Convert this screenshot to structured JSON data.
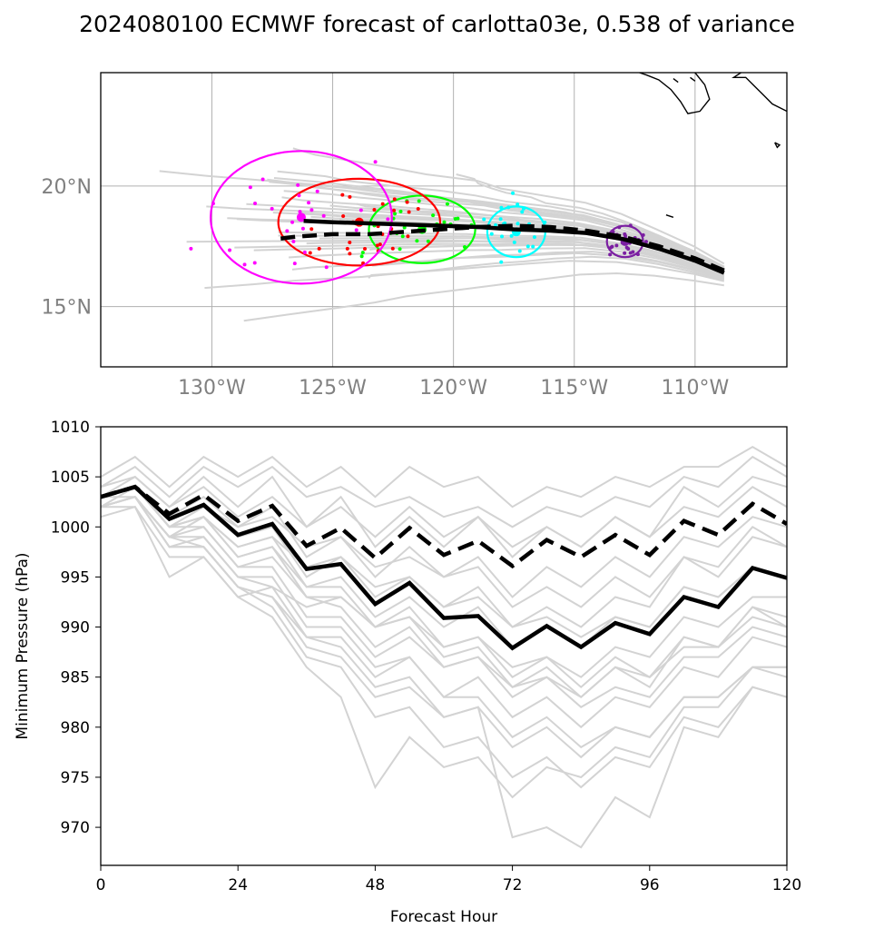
{
  "title": "2024080100 ECMWF forecast of carlotta03e, 0.538 of variance",
  "colors": {
    "ensemble": "#d3d3d3",
    "mean": "#000000",
    "grid": "#b0b0b0",
    "map_tick_label": "#808080",
    "ellipses": [
      "#7b1fa2",
      "#00ffff",
      "#00ff00",
      "#ff0000",
      "#ff00ff"
    ]
  },
  "chart_data": [
    {
      "type": "scatter",
      "name": "track_map",
      "title": "",
      "x_ticks": [
        "130°W",
        "125°W",
        "120°W",
        "115°W",
        "110°W"
      ],
      "x_tick_values": [
        -130,
        -125,
        -120,
        -115,
        -110
      ],
      "y_ticks": [
        "20°N",
        "15°N"
      ],
      "y_tick_values": [
        20,
        15
      ],
      "xlim": [
        -134.6,
        -106.2
      ],
      "ylim": [
        12.5,
        24.7
      ],
      "grid": true,
      "mean_track": {
        "lon": [
          -108.8,
          -110.0,
          -111.5,
          -113.0,
          -114.5,
          -116.0,
          -117.5,
          -119.0,
          -120.5,
          -122.0,
          -123.5,
          -125.0,
          -126.2
        ],
        "lat": [
          16.4,
          16.9,
          17.4,
          17.8,
          18.05,
          18.15,
          18.2,
          18.3,
          18.35,
          18.4,
          18.45,
          18.5,
          18.55
        ]
      },
      "dashed_track": {
        "lon": [
          -108.8,
          -110.0,
          -111.5,
          -113.0,
          -114.5,
          -116.0,
          -117.5,
          -119.0,
          -120.5,
          -122.0,
          -123.5,
          -125.0,
          -126.5,
          -127.3
        ],
        "lat": [
          16.5,
          17.0,
          17.5,
          17.9,
          18.15,
          18.3,
          18.35,
          18.3,
          18.2,
          18.1,
          18.0,
          18.0,
          17.9,
          17.8
        ]
      },
      "ellipses": [
        {
          "center": [
            -112.9,
            17.7
          ],
          "width_deg": 1.5,
          "height_deg": 1.3
        },
        {
          "center": [
            -117.4,
            18.1
          ],
          "width_deg": 2.4,
          "height_deg": 2.1
        },
        {
          "center": [
            -121.3,
            18.2
          ],
          "width_deg": 4.4,
          "height_deg": 2.8
        },
        {
          "center": [
            -123.9,
            18.5
          ],
          "width_deg": 6.7,
          "height_deg": 3.6
        },
        {
          "center": [
            -126.3,
            18.7
          ],
          "width_deg": 7.5,
          "height_deg": 5.5
        }
      ],
      "coastline": [
        [
          [
            -108.1,
            24.7
          ],
          [
            -108.4,
            24.5
          ],
          [
            -107.9,
            24.5
          ],
          [
            -107.6,
            24.2
          ],
          [
            -107.2,
            23.8
          ],
          [
            -106.8,
            23.4
          ],
          [
            -106.2,
            23.1
          ]
        ],
        [
          [
            -110.0,
            24.7
          ],
          [
            -109.6,
            24.2
          ],
          [
            -109.4,
            23.6
          ],
          [
            -109.8,
            23.1
          ],
          [
            -110.3,
            23.0
          ],
          [
            -110.6,
            23.5
          ],
          [
            -111.0,
            24.0
          ],
          [
            -111.5,
            24.4
          ],
          [
            -112.0,
            24.6
          ],
          [
            -112.3,
            24.7
          ]
        ],
        [
          [
            -110.2,
            24.5
          ],
          [
            -110.0,
            24.35
          ]
        ],
        [
          [
            -110.9,
            24.45
          ],
          [
            -110.7,
            24.3
          ]
        ],
        [
          [
            -111.2,
            18.8
          ],
          [
            -110.9,
            18.7
          ]
        ],
        [
          [
            -106.7,
            21.8
          ],
          [
            -106.5,
            21.7
          ],
          [
            -106.6,
            21.6
          ],
          [
            -106.7,
            21.8
          ]
        ]
      ]
    },
    {
      "type": "line",
      "name": "pressure_chart",
      "title": "",
      "xlabel": "Forecast Hour",
      "ylabel": "Minimum Pressure (hPa)",
      "x_ticks": [
        0,
        24,
        48,
        72,
        96,
        120
      ],
      "y_ticks": [
        970,
        975,
        980,
        985,
        990,
        995,
        1000,
        1005,
        1010
      ],
      "xlim": [
        0,
        120
      ],
      "ylim": [
        966.2,
        1010
      ],
      "grid": false,
      "x": [
        0,
        6,
        12,
        18,
        24,
        30,
        36,
        42,
        48,
        54,
        60,
        66,
        72,
        78,
        84,
        90,
        96,
        102,
        108,
        114,
        120
      ],
      "series": [
        {
          "style": "mean-solid",
          "values": [
            1003.0,
            1004.0,
            1000.8,
            1002.2,
            999.2,
            1000.3,
            995.8,
            996.3,
            992.3,
            994.4,
            990.9,
            991.1,
            987.9,
            990.1,
            988.0,
            990.4,
            989.3,
            993.0,
            992.0,
            995.9,
            994.9
          ]
        },
        {
          "style": "mean-dashed",
          "values": [
            1003.0,
            1004.0,
            1001.3,
            1003.2,
            1000.6,
            1002.1,
            998.1,
            999.9,
            996.9,
            999.9,
            997.2,
            998.6,
            996.1,
            998.7,
            997.0,
            999.2,
            997.2,
            1000.6,
            999.2,
            1002.3,
            1000.3
          ]
        },
        {
          "style": "ensemble",
          "values": [
            1004,
            1006,
            1003,
            1006,
            1004,
            1006,
            1003,
            1004,
            1002,
            1003,
            1001,
            1002,
            1000,
            1002,
            1001,
            1003,
            1002,
            1005,
            1004,
            1007,
            1005
          ]
        },
        {
          "style": "ensemble",
          "values": [
            1005,
            1007,
            1004,
            1007,
            1005,
            1007,
            1004,
            1006,
            1003,
            1006,
            1004,
            1005,
            1002,
            1004,
            1003,
            1005,
            1004,
            1006,
            1006,
            1008,
            1006
          ]
        },
        {
          "style": "ensemble",
          "values": [
            1003,
            1005,
            1002,
            1005,
            1002,
            1005,
            1000,
            1003,
            998,
            1001,
            998,
            1001,
            997,
            1000,
            998,
            1001,
            999,
            1004,
            1002,
            1005,
            1004
          ]
        },
        {
          "style": "ensemble",
          "values": [
            1003,
            1004,
            1001,
            1003,
            1000,
            1002,
            997,
            999,
            995,
            998,
            995,
            997,
            993,
            996,
            994,
            997,
            995,
            999,
            998,
            1001,
            1000
          ]
        },
        {
          "style": "ensemble",
          "values": [
            1002,
            1004,
            1000,
            1002,
            999,
            1000,
            995,
            997,
            993,
            995,
            992,
            994,
            990,
            992,
            990,
            993,
            992,
            997,
            995,
            999,
            998
          ]
        },
        {
          "style": "ensemble",
          "values": [
            1003,
            1004,
            1000,
            1001,
            998,
            999,
            994,
            995,
            991,
            993,
            990,
            992,
            988,
            990,
            988,
            991,
            990,
            994,
            993,
            996,
            995
          ]
        },
        {
          "style": "ensemble",
          "values": [
            1002,
            1003,
            999,
            1001,
            997,
            998,
            993,
            993,
            990,
            991,
            988,
            989,
            986,
            987,
            985,
            988,
            987,
            991,
            990,
            993,
            993
          ]
        },
        {
          "style": "ensemble",
          "values": [
            1003,
            1004,
            1000,
            1000,
            996,
            996,
            991,
            991,
            987,
            989,
            986,
            987,
            984,
            985,
            983,
            986,
            985,
            988,
            988,
            991,
            990
          ]
        },
        {
          "style": "ensemble",
          "values": [
            1002,
            1003,
            999,
            999,
            995,
            994,
            989,
            989,
            985,
            987,
            983,
            985,
            981,
            983,
            980,
            983,
            982,
            986,
            985,
            989,
            988
          ]
        },
        {
          "style": "ensemble",
          "values": [
            1002,
            1003,
            998,
            998,
            994,
            993,
            988,
            987,
            983,
            984,
            981,
            982,
            978,
            980,
            977,
            980,
            979,
            983,
            983,
            986,
            985
          ]
        },
        {
          "style": "ensemble",
          "values": [
            1003,
            1003,
            999,
            998,
            994,
            992,
            987,
            986,
            981,
            982,
            978,
            979,
            975,
            977,
            974,
            977,
            976,
            981,
            980,
            984,
            983
          ]
        },
        {
          "style": "ensemble",
          "values": [
            1001,
            1002,
            997,
            997,
            993,
            991,
            986,
            983,
            974,
            979,
            976,
            977,
            973,
            976,
            975,
            978,
            977,
            982,
            982,
            986,
            986
          ]
        },
        {
          "style": "ensemble",
          "values": [
            1002,
            1003,
            998,
            998,
            994,
            993,
            989,
            988,
            984,
            985,
            981,
            982,
            969,
            970,
            968,
            973,
            971,
            980,
            979,
            984,
            983
          ]
        },
        {
          "style": "ensemble",
          "values": [
            1002,
            1002,
            995,
            997,
            993,
            994,
            992,
            993,
            990,
            992,
            988,
            989,
            985,
            987,
            984,
            987,
            985,
            989,
            988,
            992,
            990
          ]
        },
        {
          "style": "ensemble",
          "values": [
            1003,
            1004,
            1001,
            1002,
            1000,
            1001,
            998,
            999,
            996,
            997,
            995,
            996,
            992,
            994,
            992,
            995,
            993,
            997,
            996,
            1000,
            998
          ]
        },
        {
          "style": "ensemble",
          "values": [
            1004,
            1005,
            1002,
            1004,
            1001,
            1003,
            1000,
            1002,
            999,
            1002,
            999,
            1001,
            998,
            1000,
            998,
            1001,
            999,
            1002,
            1001,
            1004,
            1002
          ]
        },
        {
          "style": "ensemble",
          "values": [
            1002,
            1003,
            999,
            1000,
            996,
            997,
            993,
            992,
            988,
            990,
            986,
            987,
            983,
            985,
            982,
            984,
            983,
            987,
            987,
            990,
            989
          ]
        },
        {
          "style": "ensemble",
          "values": [
            1003,
            1004,
            1000,
            1001,
            997,
            998,
            994,
            994,
            990,
            991,
            987,
            988,
            984,
            986,
            983,
            986,
            984,
            989,
            988,
            992,
            991
          ]
        },
        {
          "style": "ensemble",
          "values": [
            1002,
            1003,
            998,
            999,
            995,
            995,
            990,
            990,
            986,
            987,
            983,
            983,
            979,
            981,
            978,
            980,
            979,
            983,
            983,
            986,
            986
          ]
        },
        {
          "style": "ensemble",
          "values": [
            1003,
            1004,
            1000,
            1001,
            998,
            999,
            996,
            997,
            994,
            995,
            992,
            993,
            990,
            991,
            989,
            991,
            990,
            994,
            993,
            996,
            995
          ]
        }
      ]
    }
  ]
}
